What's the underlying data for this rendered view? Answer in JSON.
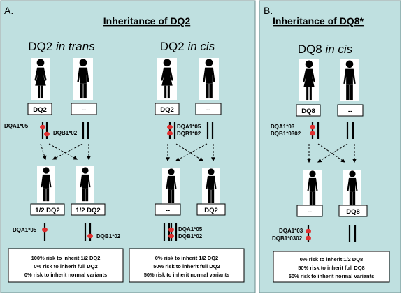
{
  "panels": {
    "a": {
      "letter": "A.",
      "title": "Inheritance of DQ2",
      "trans": {
        "heading_main": "DQ2 ",
        "heading_italic": "in trans",
        "parent_box_1": "DQ2",
        "parent_box_2": "--",
        "allele_dqa": "DQA1*05",
        "allele_dqb": "DQB1*02",
        "child_box_1": "1/2 DQ2",
        "child_box_2": "1/2 DQ2",
        "child_allele_dqa": "DQA1*05",
        "child_allele_dqb": "DQB1*02",
        "risk_1": "100% risk to inherit 1/2 DQ2",
        "risk_2": "0% risk to inherit full DQ2",
        "risk_3": "0% risk to inherit normal variants"
      },
      "cis": {
        "heading_main": "DQ2 ",
        "heading_italic": "in cis",
        "parent_box_1": "DQ2",
        "parent_box_2": "--",
        "allele_dqa": "DQA1*05",
        "allele_dqb": "DQB1*02",
        "child_box_1": "--",
        "child_box_2": "DQ2",
        "child_allele_dqa": "DQA1*05",
        "child_allele_dqb": "DQB1*02",
        "risk_1": "0% risk to inherit 1/2 DQ2",
        "risk_2": "50% risk to inherit full DQ2",
        "risk_3": "50% risk to inherit normal variants"
      }
    },
    "b": {
      "letter": "B.",
      "title": "Inheritance of DQ8*",
      "cis": {
        "heading_main": "DQ8 ",
        "heading_italic": "in cis",
        "parent_box_1": "DQ8",
        "parent_box_2": "--",
        "allele_dqa": "DQA1*03",
        "allele_dqb": "DQB1*0302",
        "child_box_1": "--",
        "child_box_2": "DQ8",
        "child_allele_dqa": "DQA1*03",
        "child_allele_dqb": "DQB1*0302",
        "risk_1": "0% risk to inherit 1/2 DQ8",
        "risk_2": "50% risk to inherit full DQ8",
        "risk_3": "50% risk to inherit normal variants"
      }
    }
  },
  "colors": {
    "panel_bg": "#bfe0e0",
    "allele_dot": "#e03030",
    "line": "#000000"
  }
}
